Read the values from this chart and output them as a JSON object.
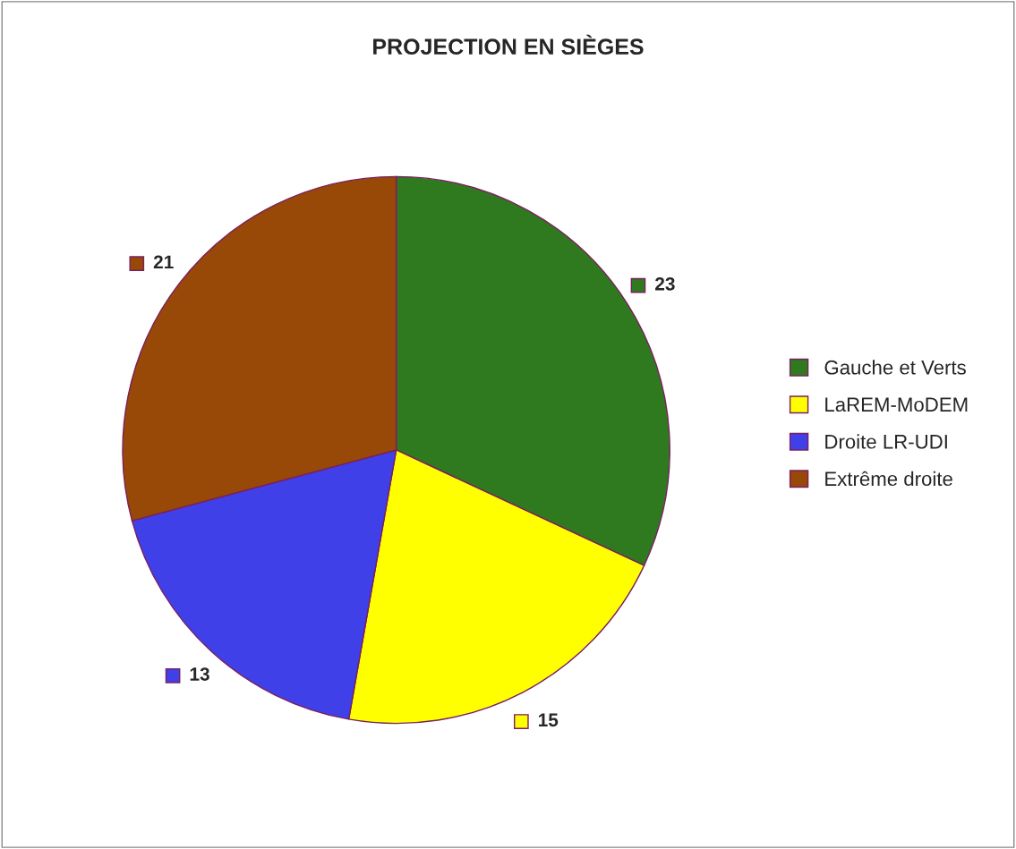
{
  "chart_data": {
    "type": "pie",
    "title": "PROJECTION EN SIÈGES",
    "categories": [
      "Gauche et Verts",
      "LaREM-MoDEM",
      "Droite LR-UDI",
      "Extrême droite"
    ],
    "values": [
      23,
      15,
      13,
      21
    ],
    "colors": [
      "#2f7a1f",
      "#ffff00",
      "#4040e8",
      "#984807"
    ],
    "data_labels": true,
    "legend": "right"
  }
}
